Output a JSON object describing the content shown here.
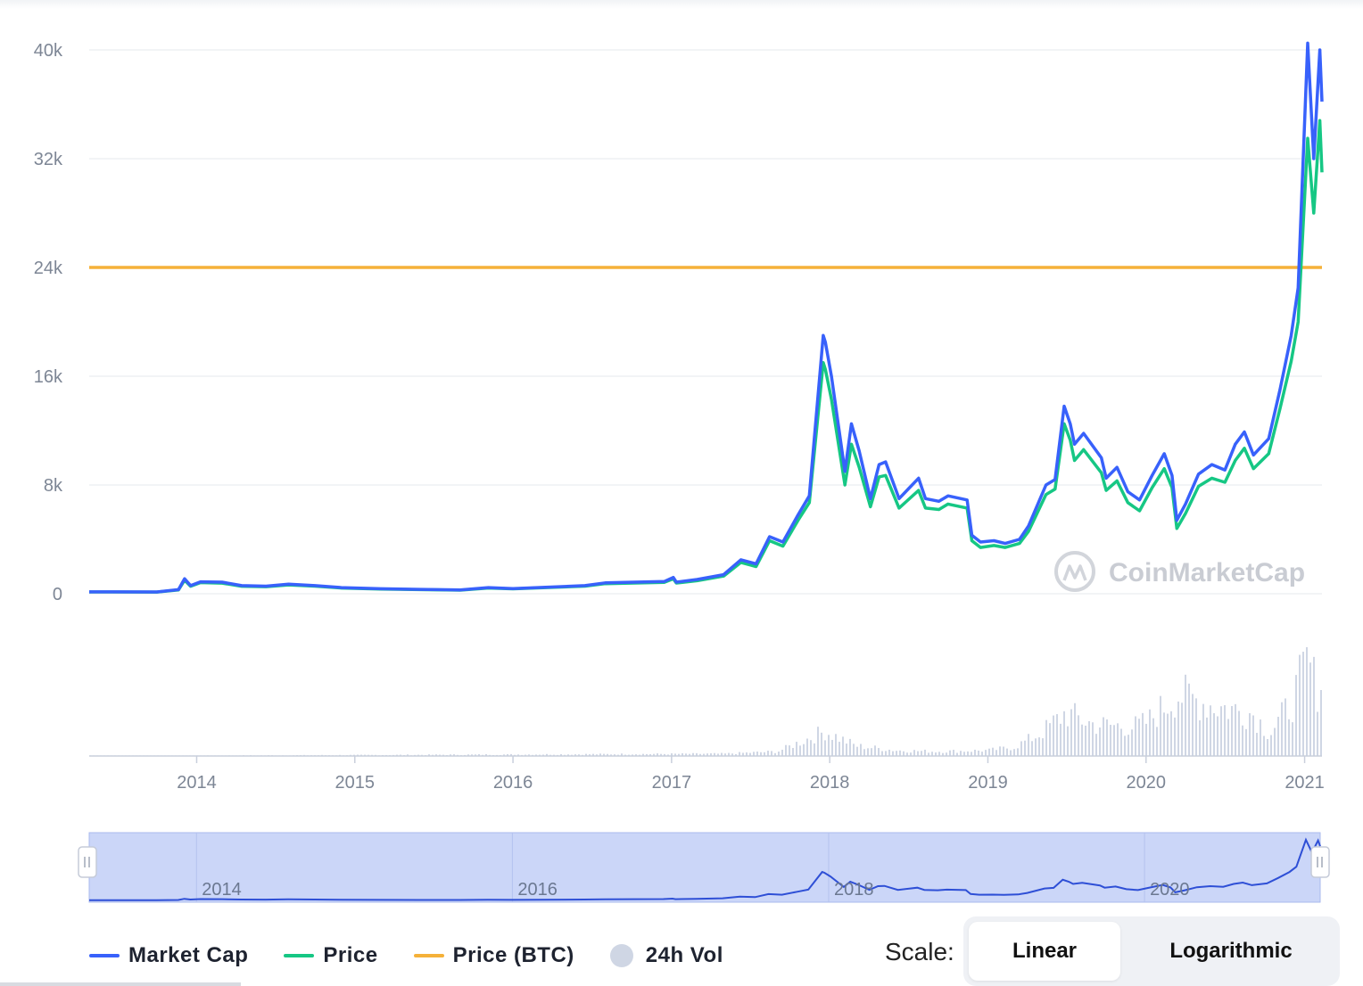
{
  "chart_data": {
    "type": "line",
    "yTicks": [
      {
        "value": 40000,
        "label": "40k"
      },
      {
        "value": 32000,
        "label": "32k"
      },
      {
        "value": 24000,
        "label": "24k"
      },
      {
        "value": 16000,
        "label": "16k"
      },
      {
        "value": 8000,
        "label": "8k"
      },
      {
        "value": 0,
        "label": "0"
      }
    ],
    "ylim": [
      0,
      40000
    ],
    "xlim": [
      "2013-04-28",
      "2021-02-10"
    ],
    "xTicks": [
      {
        "date": "2014-01-01",
        "label": "2014"
      },
      {
        "date": "2015-01-01",
        "label": "2015"
      },
      {
        "date": "2016-01-01",
        "label": "2016"
      },
      {
        "date": "2017-01-01",
        "label": "2017"
      },
      {
        "date": "2018-01-01",
        "label": "2018"
      },
      {
        "date": "2019-01-01",
        "label": "2019"
      },
      {
        "date": "2020-01-01",
        "label": "2020"
      },
      {
        "date": "2021-01-01",
        "label": "2021"
      }
    ],
    "grid": true,
    "series": [
      {
        "name": "Market Cap",
        "color": "#3861fb",
        "points": [
          [
            "2013-04-28",
            135
          ],
          [
            "2013-10-01",
            130
          ],
          [
            "2013-11-20",
            300
          ],
          [
            "2013-12-04",
            1100
          ],
          [
            "2013-12-18",
            600
          ],
          [
            "2014-01-10",
            880
          ],
          [
            "2014-03-01",
            850
          ],
          [
            "2014-04-15",
            600
          ],
          [
            "2014-06-10",
            560
          ],
          [
            "2014-08-01",
            700
          ],
          [
            "2014-10-01",
            600
          ],
          [
            "2014-12-01",
            450
          ],
          [
            "2015-03-01",
            370
          ],
          [
            "2015-06-01",
            320
          ],
          [
            "2015-09-01",
            280
          ],
          [
            "2015-11-05",
            450
          ],
          [
            "2016-01-01",
            380
          ],
          [
            "2016-06-15",
            600
          ],
          [
            "2016-08-01",
            800
          ],
          [
            "2016-12-15",
            900
          ],
          [
            "2017-01-05",
            1200
          ],
          [
            "2017-01-12",
            850
          ],
          [
            "2017-03-01",
            1050
          ],
          [
            "2017-05-01",
            1400
          ],
          [
            "2017-06-10",
            2500
          ],
          [
            "2017-07-15",
            2200
          ],
          [
            "2017-08-15",
            4200
          ],
          [
            "2017-09-15",
            3800
          ],
          [
            "2017-10-20",
            5800
          ],
          [
            "2017-11-15",
            7200
          ],
          [
            "2017-12-17",
            19000
          ],
          [
            "2017-12-22",
            18500
          ],
          [
            "2018-01-05",
            16000
          ],
          [
            "2018-02-05",
            9000
          ],
          [
            "2018-02-20",
            12500
          ],
          [
            "2018-03-10",
            10500
          ],
          [
            "2018-04-05",
            7000
          ],
          [
            "2018-04-25",
            9500
          ],
          [
            "2018-05-10",
            9700
          ],
          [
            "2018-06-10",
            7000
          ],
          [
            "2018-07-25",
            8500
          ],
          [
            "2018-08-10",
            7000
          ],
          [
            "2018-09-10",
            6800
          ],
          [
            "2018-10-01",
            7200
          ],
          [
            "2018-11-14",
            6900
          ],
          [
            "2018-11-25",
            4300
          ],
          [
            "2018-12-15",
            3800
          ],
          [
            "2019-01-15",
            3900
          ],
          [
            "2019-02-10",
            3700
          ],
          [
            "2019-03-15",
            4000
          ],
          [
            "2019-04-05",
            5000
          ],
          [
            "2019-05-15",
            8000
          ],
          [
            "2019-06-05",
            8400
          ],
          [
            "2019-06-26",
            13800
          ],
          [
            "2019-07-10",
            12500
          ],
          [
            "2019-07-20",
            11000
          ],
          [
            "2019-08-10",
            11800
          ],
          [
            "2019-09-20",
            10000
          ],
          [
            "2019-10-01",
            8500
          ],
          [
            "2019-10-26",
            9300
          ],
          [
            "2019-11-20",
            7500
          ],
          [
            "2019-12-17",
            6900
          ],
          [
            "2020-01-15",
            8700
          ],
          [
            "2020-02-12",
            10300
          ],
          [
            "2020-03-01",
            8700
          ],
          [
            "2020-03-12",
            5400
          ],
          [
            "2020-04-01",
            6600
          ],
          [
            "2020-05-01",
            8800
          ],
          [
            "2020-06-01",
            9500
          ],
          [
            "2020-07-01",
            9100
          ],
          [
            "2020-07-25",
            11000
          ],
          [
            "2020-08-15",
            11900
          ],
          [
            "2020-09-05",
            10200
          ],
          [
            "2020-10-10",
            11400
          ],
          [
            "2020-11-05",
            15000
          ],
          [
            "2020-12-01",
            19000
          ],
          [
            "2020-12-17",
            22500
          ],
          [
            "2021-01-08",
            40500
          ],
          [
            "2021-01-22",
            32000
          ],
          [
            "2021-02-05",
            40000
          ],
          [
            "2021-02-10",
            36200
          ]
        ]
      },
      {
        "name": "Price",
        "color": "#16c784",
        "points": [
          [
            "2013-04-28",
            130
          ],
          [
            "2013-10-01",
            125
          ],
          [
            "2013-11-20",
            280
          ],
          [
            "2013-12-04",
            1000
          ],
          [
            "2013-12-18",
            550
          ],
          [
            "2014-01-10",
            820
          ],
          [
            "2014-03-01",
            780
          ],
          [
            "2014-04-15",
            550
          ],
          [
            "2014-06-10",
            520
          ],
          [
            "2014-08-01",
            650
          ],
          [
            "2014-10-01",
            560
          ],
          [
            "2014-12-01",
            420
          ],
          [
            "2015-03-01",
            340
          ],
          [
            "2015-06-01",
            300
          ],
          [
            "2015-09-01",
            260
          ],
          [
            "2015-11-05",
            420
          ],
          [
            "2016-01-01",
            360
          ],
          [
            "2016-06-15",
            560
          ],
          [
            "2016-08-01",
            740
          ],
          [
            "2016-12-15",
            840
          ],
          [
            "2017-01-05",
            1100
          ],
          [
            "2017-01-12",
            790
          ],
          [
            "2017-03-01",
            960
          ],
          [
            "2017-05-01",
            1300
          ],
          [
            "2017-06-10",
            2300
          ],
          [
            "2017-07-15",
            2000
          ],
          [
            "2017-08-15",
            3900
          ],
          [
            "2017-09-15",
            3500
          ],
          [
            "2017-10-20",
            5400
          ],
          [
            "2017-11-15",
            6700
          ],
          [
            "2017-12-17",
            17000
          ],
          [
            "2017-12-22",
            16500
          ],
          [
            "2018-01-05",
            14300
          ],
          [
            "2018-02-05",
            8000
          ],
          [
            "2018-02-20",
            11000
          ],
          [
            "2018-03-10",
            9300
          ],
          [
            "2018-04-05",
            6400
          ],
          [
            "2018-04-25",
            8600
          ],
          [
            "2018-05-10",
            8700
          ],
          [
            "2018-06-10",
            6300
          ],
          [
            "2018-07-25",
            7600
          ],
          [
            "2018-08-10",
            6300
          ],
          [
            "2018-09-10",
            6200
          ],
          [
            "2018-10-01",
            6600
          ],
          [
            "2018-11-14",
            6300
          ],
          [
            "2018-11-25",
            3900
          ],
          [
            "2018-12-15",
            3400
          ],
          [
            "2019-01-15",
            3550
          ],
          [
            "2019-02-10",
            3400
          ],
          [
            "2019-03-15",
            3700
          ],
          [
            "2019-04-05",
            4600
          ],
          [
            "2019-05-15",
            7300
          ],
          [
            "2019-06-05",
            7700
          ],
          [
            "2019-06-26",
            12500
          ],
          [
            "2019-07-10",
            11300
          ],
          [
            "2019-07-20",
            9800
          ],
          [
            "2019-08-10",
            10600
          ],
          [
            "2019-09-20",
            8900
          ],
          [
            "2019-10-01",
            7600
          ],
          [
            "2019-10-26",
            8300
          ],
          [
            "2019-11-20",
            6700
          ],
          [
            "2019-12-17",
            6100
          ],
          [
            "2020-01-15",
            7800
          ],
          [
            "2020-02-12",
            9200
          ],
          [
            "2020-03-01",
            7800
          ],
          [
            "2020-03-12",
            4800
          ],
          [
            "2020-04-01",
            5900
          ],
          [
            "2020-05-01",
            7900
          ],
          [
            "2020-06-01",
            8500
          ],
          [
            "2020-07-01",
            8200
          ],
          [
            "2020-07-25",
            9800
          ],
          [
            "2020-08-15",
            10700
          ],
          [
            "2020-09-05",
            9200
          ],
          [
            "2020-10-10",
            10300
          ],
          [
            "2020-11-05",
            13600
          ],
          [
            "2020-12-01",
            17100
          ],
          [
            "2020-12-17",
            20000
          ],
          [
            "2021-01-08",
            33500
          ],
          [
            "2021-01-22",
            28000
          ],
          [
            "2021-02-05",
            34800
          ],
          [
            "2021-02-10",
            31000
          ]
        ]
      },
      {
        "name": "Price (BTC)",
        "color": "#f5b139",
        "points": [
          [
            "2013-04-28",
            24000
          ],
          [
            "2021-02-10",
            24000
          ]
        ]
      },
      {
        "name": "24h Vol",
        "color": "#cfd6e4",
        "relative_levels": [
          [
            "2013-04-28",
            0.0
          ],
          [
            "2017-05-01",
            0.02
          ],
          [
            "2017-09-01",
            0.04
          ],
          [
            "2017-12-20",
            0.22
          ],
          [
            "2018-01-10",
            0.18
          ],
          [
            "2018-03-01",
            0.09
          ],
          [
            "2018-06-01",
            0.05
          ],
          [
            "2018-09-01",
            0.04
          ],
          [
            "2019-01-01",
            0.05
          ],
          [
            "2019-03-01",
            0.08
          ],
          [
            "2019-05-01",
            0.2
          ],
          [
            "2019-06-26",
            0.38
          ],
          [
            "2019-09-01",
            0.28
          ],
          [
            "2019-12-01",
            0.26
          ],
          [
            "2020-01-01",
            0.3
          ],
          [
            "2020-03-12",
            0.55
          ],
          [
            "2020-06-01",
            0.45
          ],
          [
            "2020-09-01",
            0.38
          ],
          [
            "2020-10-10",
            0.2
          ],
          [
            "2020-12-01",
            0.48
          ],
          [
            "2021-01-08",
            0.85
          ],
          [
            "2021-01-25",
            0.6
          ],
          [
            "2021-02-10",
            0.72
          ]
        ]
      }
    ],
    "navigator": {
      "tick_labels": [
        {
          "date": "2014-01-01",
          "label": "2014"
        },
        {
          "date": "2016-01-01",
          "label": "2016"
        },
        {
          "date": "2018-01-01",
          "label": "2018"
        },
        {
          "date": "2020-01-01",
          "label": "2020"
        }
      ]
    }
  },
  "watermark": {
    "text": "CoinMarketCap"
  },
  "legend": [
    {
      "label": "Market Cap",
      "color": "#3861fb",
      "kind": "line"
    },
    {
      "label": "Price",
      "color": "#16c784",
      "kind": "line"
    },
    {
      "label": "Price (BTC)",
      "color": "#f5b139",
      "kind": "line"
    },
    {
      "label": "24h Vol",
      "color": "#cfd6e4",
      "kind": "dot"
    }
  ],
  "scale": {
    "label": "Scale:",
    "options": [
      "Linear",
      "Logarithmic"
    ],
    "selected": "Linear"
  }
}
